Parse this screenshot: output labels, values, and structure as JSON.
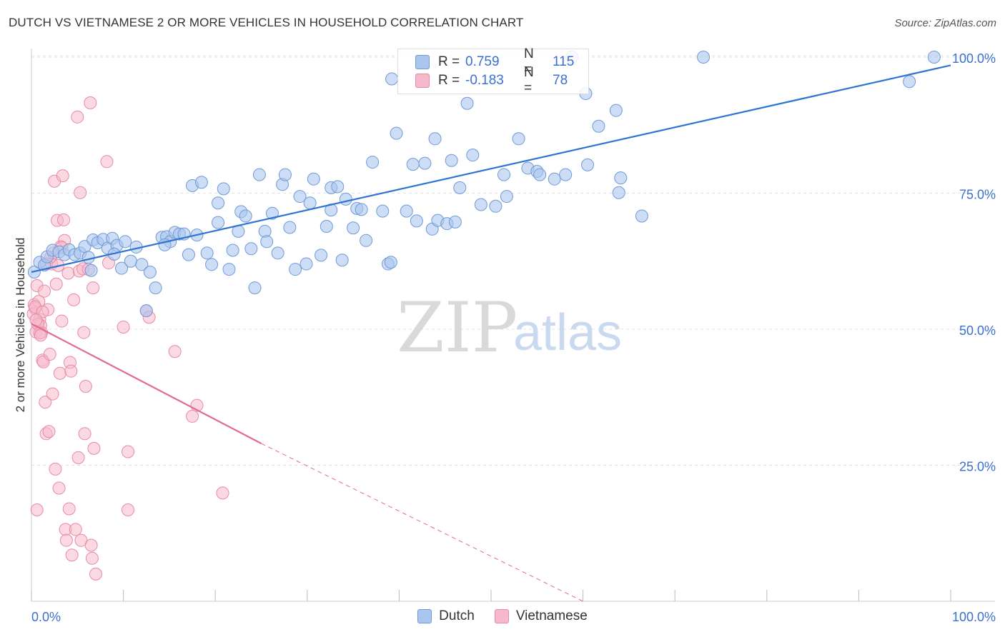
{
  "title": "DUTCH VS VIETNAMESE 2 OR MORE VEHICLES IN HOUSEHOLD CORRELATION CHART",
  "source": "Source: ZipAtlas.com",
  "watermark": {
    "zip": "ZIP",
    "atlas": "atlas"
  },
  "colors": {
    "dutch_fill": "#aac6ee",
    "dutch_stroke": "#6f9ad6",
    "dutch_line": "#2f74d0",
    "viet_fill": "#f6b9cc",
    "viet_stroke": "#e88aa8",
    "viet_line": "#e26b93",
    "axis_label": "#3b6fd1",
    "grid": "#e3e3e3"
  },
  "legend": {
    "r_label": "R =",
    "n_label": "N =",
    "dutch": {
      "r": "0.759",
      "n": "115"
    },
    "vietnamese": {
      "r": "-0.183",
      "n": "78"
    }
  },
  "chart_data": {
    "type": "scatter",
    "title": "DUTCH VS VIETNAMESE 2 OR MORE VEHICLES IN HOUSEHOLD CORRELATION CHART",
    "xlabel": "",
    "ylabel": "2 or more Vehicles in Household",
    "xlim": [
      0,
      100
    ],
    "ylim": [
      0,
      102
    ],
    "x_tick_labels": [
      "0.0%",
      "100.0%"
    ],
    "y_ticks": [
      25,
      50,
      75,
      100
    ],
    "y_tick_labels": [
      "25.0%",
      "50.0%",
      "75.0%",
      "100.0%"
    ],
    "grid": true,
    "legend_position": "top-center",
    "series": [
      {
        "name": "Dutch",
        "trend": {
          "x": [
            0,
            100
          ],
          "y": [
            60.5,
            98.5
          ]
        },
        "points": [
          [
            0.3,
            60.5
          ],
          [
            0.9,
            62.3
          ],
          [
            1.4,
            61.8
          ],
          [
            1.7,
            63.3
          ],
          [
            2.3,
            64.5
          ],
          [
            3.0,
            64.2
          ],
          [
            3.6,
            63.7
          ],
          [
            4.1,
            64.6
          ],
          [
            4.7,
            63.7
          ],
          [
            5.3,
            64.0
          ],
          [
            5.8,
            65.2
          ],
          [
            6.2,
            63.2
          ],
          [
            6.7,
            66.4
          ],
          [
            7.2,
            65.9
          ],
          [
            7.8,
            66.5
          ],
          [
            8.3,
            64.9
          ],
          [
            8.8,
            66.7
          ],
          [
            9.3,
            65.4
          ],
          [
            9.8,
            61.2
          ],
          [
            10.2,
            66.1
          ],
          [
            10.8,
            62.5
          ],
          [
            11.4,
            65.1
          ],
          [
            12.0,
            61.9
          ],
          [
            12.9,
            60.5
          ],
          [
            13.5,
            57.6
          ],
          [
            14.2,
            66.9
          ],
          [
            14.7,
            67.0
          ],
          [
            15.1,
            66.1
          ],
          [
            15.6,
            67.8
          ],
          [
            16.1,
            67.5
          ],
          [
            16.6,
            67.5
          ],
          [
            17.1,
            63.7
          ],
          [
            17.5,
            76.4
          ],
          [
            18.0,
            67.3
          ],
          [
            18.5,
            77.0
          ],
          [
            19.1,
            64.0
          ],
          [
            19.6,
            61.9
          ],
          [
            20.3,
            69.6
          ],
          [
            20.3,
            73.2
          ],
          [
            20.9,
            75.8
          ],
          [
            21.5,
            61.0
          ],
          [
            21.9,
            64.5
          ],
          [
            22.5,
            68.0
          ],
          [
            22.8,
            71.6
          ],
          [
            23.3,
            70.8
          ],
          [
            23.9,
            64.8
          ],
          [
            24.3,
            57.6
          ],
          [
            24.8,
            78.4
          ],
          [
            25.4,
            68.0
          ],
          [
            25.6,
            66.1
          ],
          [
            26.2,
            71.3
          ],
          [
            26.8,
            64.0
          ],
          [
            27.3,
            76.6
          ],
          [
            27.6,
            78.4
          ],
          [
            28.1,
            68.7
          ],
          [
            28.7,
            61.0
          ],
          [
            29.2,
            74.4
          ],
          [
            29.9,
            62.0
          ],
          [
            30.3,
            73.2
          ],
          [
            30.7,
            77.6
          ],
          [
            31.5,
            63.6
          ],
          [
            32.1,
            68.9
          ],
          [
            32.6,
            71.9
          ],
          [
            32.6,
            76.0
          ],
          [
            33.3,
            76.2
          ],
          [
            33.8,
            62.7
          ],
          [
            34.2,
            73.9
          ],
          [
            35.0,
            68.6
          ],
          [
            35.4,
            72.2
          ],
          [
            35.9,
            72.0
          ],
          [
            36.4,
            66.3
          ],
          [
            37.1,
            80.7
          ],
          [
            38.2,
            71.7
          ],
          [
            38.8,
            62.0
          ],
          [
            39.1,
            62.3
          ],
          [
            39.2,
            96.0
          ],
          [
            39.7,
            86.0
          ],
          [
            40.8,
            71.7
          ],
          [
            41.5,
            80.3
          ],
          [
            41.9,
            69.9
          ],
          [
            42.8,
            80.5
          ],
          [
            43.6,
            68.4
          ],
          [
            43.9,
            85.0
          ],
          [
            44.2,
            70.0
          ],
          [
            45.2,
            69.4
          ],
          [
            45.7,
            81.0
          ],
          [
            46.1,
            69.7
          ],
          [
            47.4,
            91.5
          ],
          [
            46.6,
            76.0
          ],
          [
            48.0,
            82.0
          ],
          [
            48.9,
            72.9
          ],
          [
            50.5,
            72.6
          ],
          [
            51.4,
            78.4
          ],
          [
            51.7,
            74.4
          ],
          [
            53.0,
            85.0
          ],
          [
            54.0,
            79.6
          ],
          [
            55.0,
            79.0
          ],
          [
            55.3,
            78.4
          ],
          [
            56.9,
            77.6
          ],
          [
            58.1,
            78.4
          ],
          [
            58.8,
            100.0
          ],
          [
            60.3,
            93.3
          ],
          [
            60.5,
            80.2
          ],
          [
            61.7,
            87.3
          ],
          [
            63.6,
            90.2
          ],
          [
            63.9,
            75.1
          ],
          [
            64.1,
            77.8
          ],
          [
            66.4,
            70.8
          ],
          [
            73.1,
            100.0
          ],
          [
            95.5,
            95.5
          ],
          [
            98.2,
            100.0
          ],
          [
            6.5,
            60.8
          ],
          [
            12.5,
            53.4
          ],
          [
            9.0,
            63.8
          ],
          [
            14.5,
            65.5
          ]
        ]
      },
      {
        "name": "Vietnamese",
        "trend": {
          "x": [
            0,
            25
          ],
          "y": [
            51.0,
            29.0
          ]
        },
        "trend_extension": {
          "x": [
            25,
            60
          ],
          "y": [
            29.0,
            -1.8
          ]
        },
        "points": [
          [
            0.3,
            54.5
          ],
          [
            0.4,
            53.8
          ],
          [
            0.5,
            49.5
          ],
          [
            0.6,
            58.0
          ],
          [
            0.6,
            16.8
          ],
          [
            0.8,
            55.1
          ],
          [
            0.9,
            51.8
          ],
          [
            1.0,
            50.7
          ],
          [
            1.1,
            49.4
          ],
          [
            1.2,
            44.3
          ],
          [
            1.3,
            44.0
          ],
          [
            1.4,
            57.0
          ],
          [
            1.5,
            36.6
          ],
          [
            1.6,
            30.8
          ],
          [
            1.8,
            53.6
          ],
          [
            1.9,
            31.2
          ],
          [
            2.0,
            45.4
          ],
          [
            2.1,
            63.2
          ],
          [
            2.2,
            62.0
          ],
          [
            2.3,
            38.1
          ],
          [
            2.5,
            77.2
          ],
          [
            2.6,
            24.3
          ],
          [
            2.7,
            58.3
          ],
          [
            2.8,
            70.0
          ],
          [
            2.9,
            61.7
          ],
          [
            3.0,
            20.8
          ],
          [
            3.1,
            41.9
          ],
          [
            3.2,
            65.2
          ],
          [
            3.3,
            51.5
          ],
          [
            3.4,
            78.2
          ],
          [
            3.5,
            70.1
          ],
          [
            3.6,
            66.3
          ],
          [
            3.7,
            13.2
          ],
          [
            3.8,
            11.2
          ],
          [
            4.0,
            60.3
          ],
          [
            4.1,
            17.0
          ],
          [
            4.2,
            43.9
          ],
          [
            4.3,
            42.3
          ],
          [
            4.4,
            8.5
          ],
          [
            4.6,
            55.4
          ],
          [
            4.8,
            13.2
          ],
          [
            5.0,
            89.0
          ],
          [
            5.1,
            26.4
          ],
          [
            5.2,
            60.7
          ],
          [
            5.3,
            75.1
          ],
          [
            5.4,
            11.2
          ],
          [
            5.6,
            61.1
          ],
          [
            5.7,
            49.4
          ],
          [
            5.8,
            30.8
          ],
          [
            5.9,
            39.5
          ],
          [
            6.2,
            61.0
          ],
          [
            6.4,
            91.6
          ],
          [
            6.5,
            10.3
          ],
          [
            6.6,
            7.9
          ],
          [
            6.7,
            57.6
          ],
          [
            6.8,
            28.1
          ],
          [
            7.0,
            5.0
          ],
          [
            8.2,
            80.8
          ],
          [
            8.4,
            62.2
          ],
          [
            10.0,
            50.4
          ],
          [
            10.5,
            27.5
          ],
          [
            10.5,
            16.8
          ],
          [
            12.5,
            53.4
          ],
          [
            12.8,
            52.2
          ],
          [
            15.6,
            45.9
          ],
          [
            17.5,
            34.0
          ],
          [
            18.0,
            36.0
          ],
          [
            20.8,
            19.9
          ],
          [
            0.2,
            52.8
          ],
          [
            0.4,
            54.1
          ],
          [
            0.7,
            50.9
          ],
          [
            0.9,
            49.3
          ],
          [
            1.2,
            53.2
          ],
          [
            1.6,
            62.0
          ],
          [
            2.4,
            64.0
          ],
          [
            3.3,
            65.0
          ],
          [
            0.5,
            51.7
          ],
          [
            1.0,
            48.9
          ]
        ]
      }
    ]
  }
}
